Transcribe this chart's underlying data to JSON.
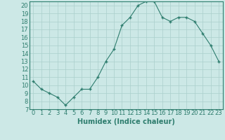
{
  "x": [
    0,
    1,
    2,
    3,
    4,
    5,
    6,
    7,
    8,
    9,
    10,
    11,
    12,
    13,
    14,
    15,
    16,
    17,
    18,
    19,
    20,
    21,
    22,
    23
  ],
  "y": [
    10.5,
    9.5,
    9.0,
    8.5,
    7.5,
    8.5,
    9.5,
    9.5,
    11.0,
    13.0,
    14.5,
    17.5,
    18.5,
    20.0,
    20.5,
    20.5,
    18.5,
    18.0,
    18.5,
    18.5,
    18.0,
    16.5,
    15.0,
    13.0
  ],
  "xlabel": "Humidex (Indice chaleur)",
  "xlim": [
    -0.5,
    23.5
  ],
  "ylim": [
    7,
    20.5
  ],
  "yticks": [
    7,
    8,
    9,
    10,
    11,
    12,
    13,
    14,
    15,
    16,
    17,
    18,
    19,
    20
  ],
  "xticks": [
    0,
    1,
    2,
    3,
    4,
    5,
    6,
    7,
    8,
    9,
    10,
    11,
    12,
    13,
    14,
    15,
    16,
    17,
    18,
    19,
    20,
    21,
    22,
    23
  ],
  "line_color": "#2e7d6e",
  "marker": "+",
  "marker_size": 3.5,
  "bg_color": "#cce8e6",
  "grid_color": "#aacfcc",
  "font_color": "#2e7d6e",
  "xlabel_fontsize": 7,
  "tick_fontsize": 6
}
